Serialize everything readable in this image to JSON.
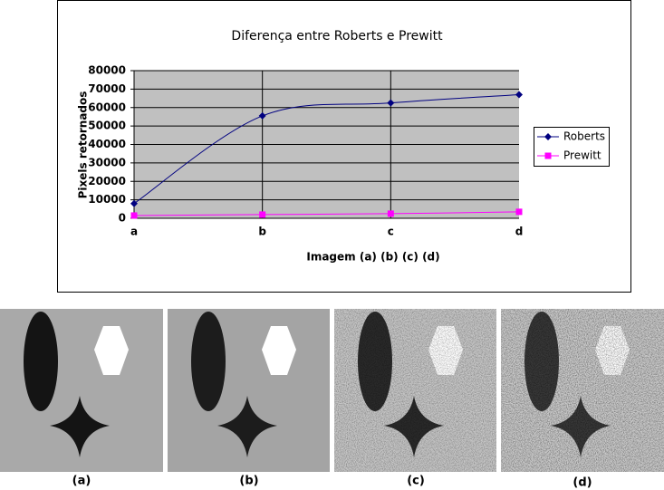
{
  "chart_data": {
    "type": "line",
    "title": "Diferença entre Roberts e Prewitt",
    "x_label": "Imagem (a) (b) (c) (d)",
    "y_label": "Pixels retornados",
    "categories": [
      "a",
      "b",
      "c",
      "d"
    ],
    "series": [
      {
        "name": "Roberts",
        "color": "#000080",
        "marker": "diamond",
        "values": [
          8000,
          55500,
          62500,
          67000
        ]
      },
      {
        "name": "Prewitt",
        "color": "#ff00ff",
        "marker": "square",
        "values": [
          1500,
          2000,
          2500,
          3500
        ]
      }
    ],
    "ylim": [
      0,
      80000
    ],
    "yticks": [
      0,
      10000,
      20000,
      30000,
      40000,
      50000,
      60000,
      70000,
      80000
    ],
    "grid": true,
    "smooth": true,
    "legend": "right"
  },
  "images": {
    "labels": [
      "(a)",
      "(b)",
      "(c)",
      "(d)"
    ]
  }
}
